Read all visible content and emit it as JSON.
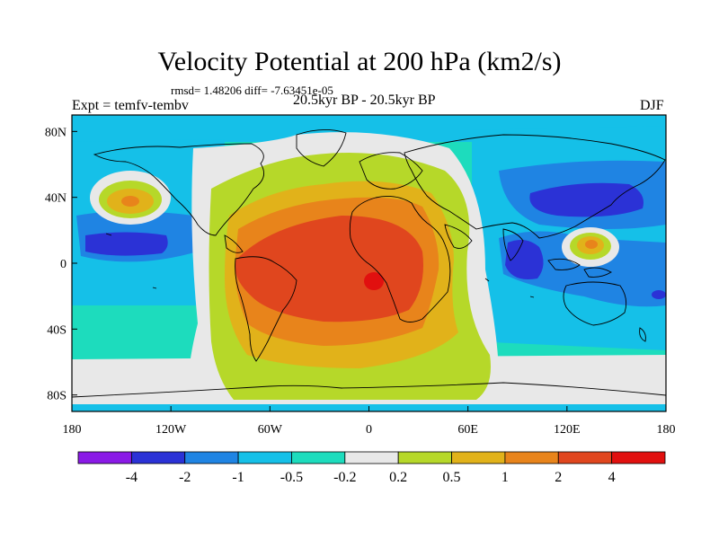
{
  "title": "Velocity Potential at 200 hPa (km2/s)",
  "stats": "rmsd= 1.48206 diff= -7.63451e-05",
  "left_label": "Expt = temfv-tembv",
  "center_label": "20.5kyr BP - 20.5kyr BP",
  "right_label": "DJF",
  "map": {
    "projection": "cylindrical equidistant",
    "lon_range": [
      -180,
      180
    ],
    "lat_range": [
      -90,
      90
    ],
    "x_ticks": [
      "180",
      "120W",
      "60W",
      "0",
      "60E",
      "120E",
      "180"
    ],
    "y_ticks": [
      "80N",
      "40N",
      "0",
      "40S",
      "80S"
    ]
  },
  "colorbar": {
    "labels": [
      "-4",
      "-2",
      "-1",
      "-0.5",
      "-0.2",
      "0.2",
      "0.5",
      "1",
      "2",
      "4"
    ],
    "colors": [
      "#8a1ae6",
      "#2b32d6",
      "#1f84e3",
      "#15c0e8",
      "#1ddcbd",
      "#e8e8e8",
      "#b6d829",
      "#e1b21a",
      "#e8841b",
      "#e0461e",
      "#e1100f"
    ]
  }
}
